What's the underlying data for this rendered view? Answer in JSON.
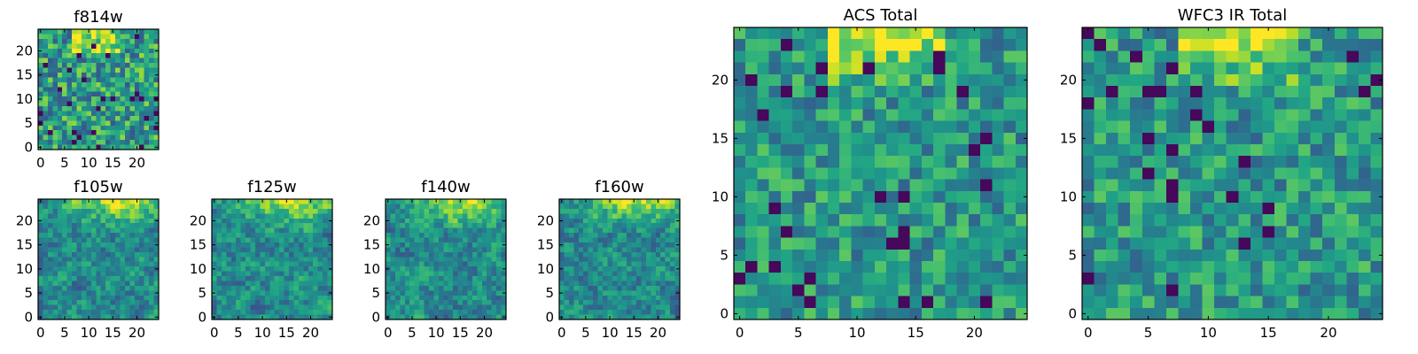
{
  "chart_data": [
    {
      "type": "heatmap",
      "title": "f814w",
      "grid_size": 25,
      "pixel_scale": 1,
      "xlim": [
        0,
        24
      ],
      "ylim": [
        0,
        24
      ],
      "x_ticks": [
        "0",
        "5",
        "10",
        "15",
        "20"
      ],
      "y_ticks": [
        "0",
        "5",
        "10",
        "15",
        "20"
      ],
      "colormap": "viridis",
      "texture": "noisy",
      "bright_region": "top-center",
      "seed": 11
    },
    {
      "type": "heatmap",
      "title": "f105w",
      "grid_size": 25,
      "pixel_scale": 1,
      "xlim": [
        0,
        24
      ],
      "ylim": [
        0,
        24
      ],
      "x_ticks": [
        "0",
        "5",
        "10",
        "15",
        "20"
      ],
      "y_ticks": [
        "0",
        "5",
        "10",
        "15",
        "20"
      ],
      "colormap": "viridis",
      "texture": "smooth",
      "bright_region": "top-right",
      "seed": 23
    },
    {
      "type": "heatmap",
      "title": "f125w",
      "grid_size": 25,
      "pixel_scale": 1,
      "xlim": [
        0,
        24
      ],
      "ylim": [
        0,
        24
      ],
      "x_ticks": [
        "0",
        "5",
        "10",
        "15",
        "20"
      ],
      "y_ticks": [
        "0",
        "5",
        "10",
        "15",
        "20"
      ],
      "colormap": "viridis",
      "texture": "smooth",
      "bright_region": "top-right",
      "seed": 37
    },
    {
      "type": "heatmap",
      "title": "f140w",
      "grid_size": 25,
      "pixel_scale": 1,
      "xlim": [
        0,
        24
      ],
      "ylim": [
        0,
        24
      ],
      "x_ticks": [
        "0",
        "5",
        "10",
        "15",
        "20"
      ],
      "y_ticks": [
        "0",
        "5",
        "10",
        "15",
        "20"
      ],
      "colormap": "viridis",
      "texture": "smooth",
      "bright_region": "top-right",
      "seed": 41
    },
    {
      "type": "heatmap",
      "title": "f160w",
      "grid_size": 25,
      "pixel_scale": 1,
      "xlim": [
        0,
        24
      ],
      "ylim": [
        0,
        24
      ],
      "x_ticks": [
        "0",
        "5",
        "10",
        "15",
        "20"
      ],
      "y_ticks": [
        "0",
        "5",
        "10",
        "15",
        "20"
      ],
      "colormap": "viridis",
      "texture": "smooth",
      "bright_region": "top-right",
      "seed": 53
    },
    {
      "type": "heatmap",
      "title": "ACS Total",
      "grid_size": 25,
      "pixel_scale": 1,
      "xlim": [
        0,
        24
      ],
      "ylim": [
        0,
        24
      ],
      "x_ticks": [
        "0",
        "5",
        "10",
        "15",
        "20"
      ],
      "y_ticks": [
        "0",
        "5",
        "10",
        "15",
        "20"
      ],
      "colormap": "viridis",
      "texture": "blocky",
      "bright_region": "top-center",
      "seed": 67
    },
    {
      "type": "heatmap",
      "title": "WFC3 IR Total",
      "grid_size": 25,
      "pixel_scale": 1,
      "xlim": [
        0,
        24
      ],
      "ylim": [
        0,
        24
      ],
      "x_ticks": [
        "0",
        "5",
        "10",
        "15",
        "20"
      ],
      "y_ticks": [
        "0",
        "5",
        "10",
        "15",
        "20"
      ],
      "colormap": "viridis",
      "texture": "blocky",
      "bright_region": "top-center",
      "seed": 79
    }
  ]
}
